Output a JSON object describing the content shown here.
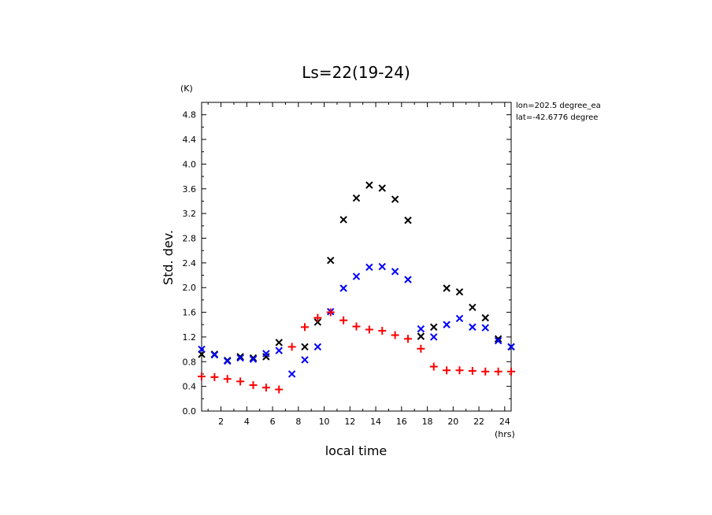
{
  "chart_data": {
    "type": "scatter",
    "title": "Ls=22(19-24)",
    "xlabel": "local time",
    "ylabel": "Std. dev.",
    "xunit": "(hrs)",
    "yunit": "(K)",
    "annotations": [
      "lon=202.5 degree_ea",
      "lat=-42.6776 degree"
    ],
    "xlim": [
      0.5,
      24.5
    ],
    "ylim": [
      0.0,
      5.0
    ],
    "xticks": [
      2,
      4,
      6,
      8,
      10,
      12,
      14,
      16,
      18,
      20,
      22,
      24
    ],
    "yticks": [
      0.0,
      0.4,
      0.8,
      1.2,
      1.6,
      2.0,
      2.4,
      2.8,
      3.2,
      3.6,
      4.0,
      4.4,
      4.8
    ],
    "ytick_labels": [
      "0.0",
      "0.4",
      "0.8",
      "1.2",
      "1.6",
      "2.0",
      "2.4",
      "2.8",
      "3.2",
      "3.6",
      "4.0",
      "4.4",
      "4.8"
    ],
    "x": [
      0.5,
      1.5,
      2.5,
      3.5,
      4.5,
      5.5,
      6.5,
      7.5,
      8.5,
      9.5,
      10.5,
      11.5,
      12.5,
      13.5,
      14.5,
      15.5,
      16.5,
      17.5,
      18.5,
      19.5,
      20.5,
      21.5,
      22.5,
      23.5,
      24.5
    ],
    "series": [
      {
        "marker": "x",
        "color": "#000000",
        "values": [
          0.92,
          0.92,
          0.82,
          0.88,
          0.86,
          0.88,
          1.11,
          null,
          1.04,
          1.44,
          2.44,
          3.1,
          3.45,
          3.66,
          3.61,
          3.43,
          3.09,
          1.21,
          1.36,
          1.99,
          1.93,
          1.68,
          1.51,
          1.17,
          1.04
        ]
      },
      {
        "marker": "x",
        "color": "#0000ff",
        "values": [
          1.0,
          0.91,
          0.81,
          0.86,
          0.84,
          0.93,
          0.98,
          0.6,
          0.83,
          1.04,
          1.61,
          1.99,
          2.18,
          2.33,
          2.34,
          2.26,
          2.13,
          1.33,
          1.2,
          1.4,
          1.5,
          1.36,
          1.35,
          1.14,
          1.04
        ]
      },
      {
        "marker": "+",
        "color": "#ff0000",
        "values": [
          0.56,
          0.55,
          0.52,
          0.48,
          0.42,
          0.38,
          0.35,
          1.04,
          1.36,
          1.51,
          1.6,
          1.47,
          1.37,
          1.32,
          1.3,
          1.23,
          1.17,
          1.01,
          0.72,
          0.66,
          0.66,
          0.65,
          0.64,
          0.64,
          0.64
        ]
      }
    ]
  }
}
